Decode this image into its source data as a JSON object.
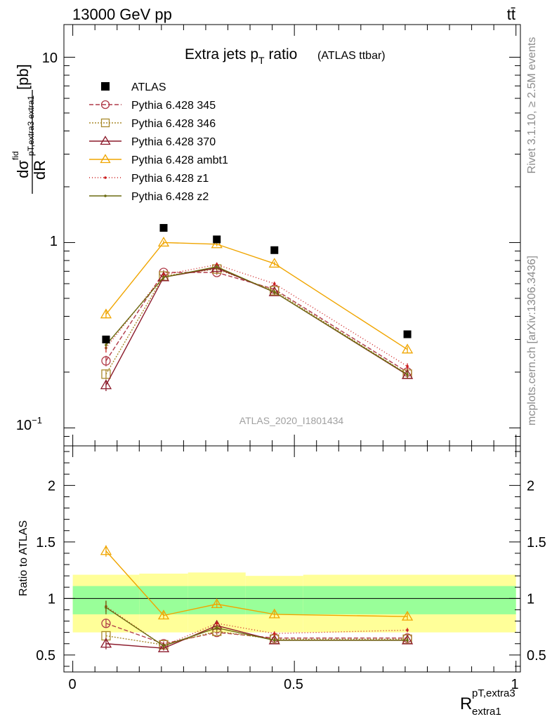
{
  "header": {
    "energy_label": "13000 GeV pp",
    "process_label": "tt̄",
    "title_main": "Extra jets p",
    "title_sub": "T",
    "title_tail": " ratio",
    "title_note": "(ATLAS ttbar)",
    "analysis_id": "ATLAS_2020_I1801434",
    "side_top": "Rivet 3.1.10, ≥ 2.5M events",
    "side_bottom": "mcplots.cern.ch [arXiv:1306.3436]"
  },
  "axes": {
    "upper_ylabel": "dσ/dR [pb]",
    "upper_ylabel_main": "dσ",
    "upper_ylabel_fid": "fid",
    "upper_ylabel_den": "dR",
    "upper_ylabel_sub": "pT,extra3 extra1",
    "upper_ylabel_unit": "[pb]",
    "lower_ylabel": "Ratio to ATLAS",
    "xlabel_main": "R",
    "xlabel_sup": "pT,extra3",
    "xlabel_sub": "extra1",
    "upper_yticks": [
      "10",
      "1",
      "10"
    ],
    "upper_ytick_exp": "−1",
    "lower_yticks": [
      "2",
      "1.5",
      "1",
      "0.5"
    ],
    "xticks": [
      "0",
      "0.5",
      "1"
    ]
  },
  "chart_data": {
    "type": "line",
    "x": [
      0.075,
      0.205,
      0.325,
      0.455,
      0.755
    ],
    "xlim": [
      -0.02,
      1.01
    ],
    "upper_ylim": [
      0.08,
      15
    ],
    "upper_scale": "log",
    "lower_ylim": [
      0.35,
      2.35
    ],
    "legend_position": "top-left",
    "data": {
      "name": "ATLAS",
      "color": "#000000",
      "values": [
        0.3,
        1.2,
        1.04,
        0.91,
        0.32
      ]
    },
    "series": [
      {
        "name": "Pythia 6.428 345",
        "color": "#b03a48",
        "dash": "6,3",
        "marker": "circle",
        "values": [
          0.23,
          0.69,
          0.69,
          0.56,
          0.2
        ],
        "errors": [
          0.015,
          0.02,
          0.02,
          0.015,
          0.008
        ],
        "ratio": [
          0.78,
          0.6,
          0.7,
          0.65,
          0.65
        ],
        "ratio_err": [
          0.04,
          0.02,
          0.02,
          0.02,
          0.02
        ]
      },
      {
        "name": "Pythia 6.428 346",
        "color": "#a98a2c",
        "dash": "2,2",
        "marker": "square",
        "values": [
          0.195,
          0.66,
          0.72,
          0.55,
          0.195
        ],
        "errors": [
          0.012,
          0.02,
          0.02,
          0.015,
          0.008
        ],
        "ratio": [
          0.67,
          0.59,
          0.71,
          0.64,
          0.64
        ],
        "ratio_err": [
          0.04,
          0.02,
          0.02,
          0.02,
          0.02
        ]
      },
      {
        "name": "Pythia 6.428 370",
        "color": "#8b1a2b",
        "dash": "",
        "marker": "triangle",
        "values": [
          0.17,
          0.65,
          0.73,
          0.54,
          0.193
        ],
        "errors": [
          0.012,
          0.02,
          0.02,
          0.015,
          0.008
        ],
        "ratio": [
          0.6,
          0.56,
          0.76,
          0.63,
          0.63
        ],
        "ratio_err": [
          0.05,
          0.02,
          0.02,
          0.02,
          0.02
        ]
      },
      {
        "name": "Pythia 6.428 ambt1",
        "color": "#f0a500",
        "dash": "",
        "marker": "triangle",
        "values": [
          0.41,
          1.0,
          0.98,
          0.77,
          0.265
        ],
        "errors": [
          0.02,
          0.025,
          0.025,
          0.02,
          0.01
        ],
        "ratio": [
          1.42,
          0.85,
          0.95,
          0.86,
          0.84
        ],
        "ratio_err": [
          0.05,
          0.03,
          0.03,
          0.03,
          0.03
        ]
      },
      {
        "name": "Pythia 6.428 z1",
        "color": "#cc1f1f",
        "dash": "1,3",
        "marker": "dot",
        "values": [
          0.27,
          0.67,
          0.76,
          0.6,
          0.215
        ],
        "errors": [
          0.015,
          0.02,
          0.02,
          0.015,
          0.008
        ],
        "ratio": [
          0.93,
          0.58,
          0.78,
          0.69,
          0.72
        ],
        "ratio_err": [
          0.05,
          0.02,
          0.02,
          0.02,
          0.02
        ]
      },
      {
        "name": "Pythia 6.428 z2",
        "color": "#6b6b10",
        "dash": "",
        "marker": "dot",
        "values": [
          0.28,
          0.65,
          0.74,
          0.54,
          0.194
        ],
        "errors": [
          0.015,
          0.02,
          0.02,
          0.015,
          0.008
        ],
        "ratio": [
          0.92,
          0.58,
          0.74,
          0.63,
          0.63
        ],
        "ratio_err": [
          0.06,
          0.02,
          0.02,
          0.02,
          0.02
        ]
      }
    ],
    "bands": {
      "inner_color": "#99ff99",
      "outer_color": "#ffff99",
      "bins": [
        {
          "x0": 0.0,
          "x1": 0.15,
          "inner": [
            0.86,
            1.11
          ],
          "outer": [
            0.7,
            1.21
          ]
        },
        {
          "x0": 0.15,
          "x1": 0.26,
          "inner": [
            0.86,
            1.11
          ],
          "outer": [
            0.7,
            1.22
          ]
        },
        {
          "x0": 0.26,
          "x1": 0.39,
          "inner": [
            0.86,
            1.11
          ],
          "outer": [
            0.7,
            1.23
          ]
        },
        {
          "x0": 0.39,
          "x1": 0.52,
          "inner": [
            0.86,
            1.11
          ],
          "outer": [
            0.7,
            1.2
          ]
        },
        {
          "x0": 0.52,
          "x1": 1.0,
          "inner": [
            0.86,
            1.11
          ],
          "outer": [
            0.7,
            1.21
          ]
        }
      ]
    }
  }
}
